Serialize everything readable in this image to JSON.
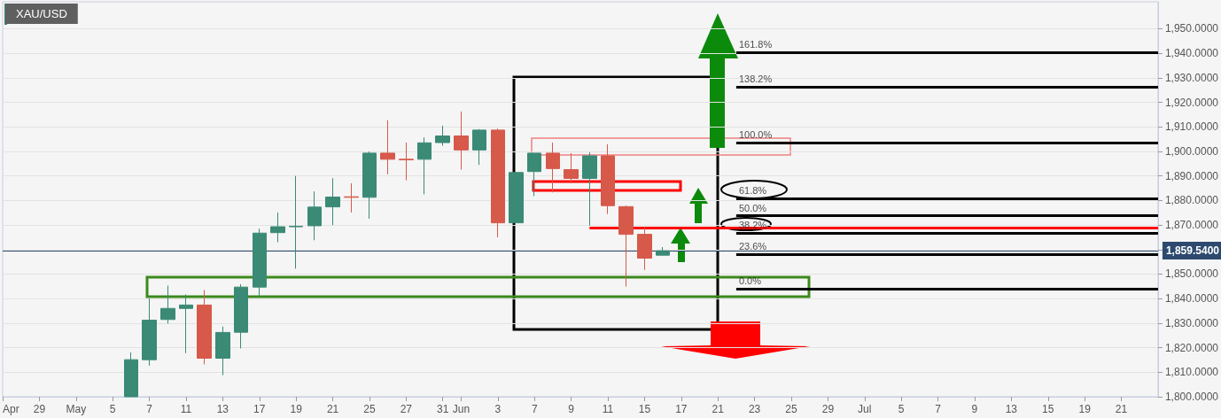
{
  "chart_data": {
    "type": "candlestick",
    "title": "XAU/USD",
    "categories": [
      "Apr",
      null,
      "29",
      null,
      "May",
      null,
      "5",
      null,
      "7",
      null,
      "11",
      null,
      "13",
      null,
      "17",
      null,
      "19",
      null,
      "21",
      null,
      "25",
      null,
      "27",
      null,
      "31",
      "Jun",
      null,
      "3",
      null,
      "7",
      null,
      "9",
      null,
      "11",
      null,
      "15",
      null,
      "17",
      null,
      "21",
      null,
      "23",
      null,
      "25",
      null,
      "29",
      null,
      "Jul",
      null,
      "5",
      null,
      "7",
      null,
      "9",
      null,
      "13",
      null,
      "15",
      null,
      "19",
      null,
      "21",
      null,
      null
    ],
    "ohlc": [
      null,
      null,
      null,
      null,
      null,
      null,
      null,
      [
        1800,
        1818.1,
        1800,
        1815.1
      ],
      [
        1815.1,
        1840,
        1812.7,
        1831.2
      ],
      [
        1831.5,
        1845.3,
        1829.8,
        1836.0
      ],
      [
        1836.0,
        1841.7,
        1817.8,
        1837.4
      ],
      [
        1837.4,
        1843.5,
        1813.2,
        1815.7
      ],
      [
        1815.7,
        1828.6,
        1808.8,
        1826.2
      ],
      [
        1826.3,
        1845.9,
        1819.7,
        1844.7
      ],
      [
        1844.7,
        1868.5,
        1840.7,
        1866.7
      ],
      [
        1866.9,
        1875.1,
        1863.0,
        1869.3
      ],
      [
        1869.3,
        1890.0,
        1852.2,
        1869.5
      ],
      [
        1869.7,
        1883.7,
        1863.8,
        1877.3
      ],
      [
        1877.4,
        1889.1,
        1870.0,
        1881.4
      ],
      [
        1881.5,
        1887.0,
        1875.1,
        1881.3
      ],
      [
        1881.3,
        1900.0,
        1872.6,
        1899.3
      ],
      [
        1899.3,
        1912.7,
        1890.7,
        1896.8
      ],
      [
        1896.8,
        1903.6,
        1888.2,
        1896.6
      ],
      [
        1896.8,
        1905.7,
        1882.5,
        1903.5
      ],
      [
        1903.6,
        1910.5,
        1902.3,
        1906.3
      ],
      [
        1906.3,
        1916.3,
        1892.6,
        1900.6
      ],
      [
        1900.6,
        1909.1,
        1894.5,
        1908.7
      ],
      [
        1908.7,
        1909.3,
        1865.0,
        1870.9
      ],
      [
        1870.9,
        1891.4,
        1870.9,
        1891.4
      ],
      [
        1891.8,
        1899.3,
        1881.8,
        1899.3
      ],
      [
        1899.3,
        1903.6,
        1883.3,
        1893.0
      ],
      [
        1892.6,
        1899.3,
        1887.0,
        1889.0
      ],
      [
        1889.0,
        1899.6,
        1869.7,
        1898.2
      ],
      [
        1898.2,
        1902.9,
        1874.5,
        1877.9
      ],
      [
        1877.5,
        1877.9,
        1844.9,
        1866.2
      ],
      [
        1866.2,
        1869.1,
        1851.7,
        1856.5
      ],
      [
        1857.7,
        1861.0,
        1857.7,
        1859.5
      ],
      null,
      null,
      null,
      null,
      null,
      null,
      null,
      null,
      null,
      null,
      null,
      null,
      null,
      null,
      null,
      null,
      null,
      null,
      null,
      null,
      null,
      null,
      null,
      null,
      null,
      null,
      null
    ],
    "colors": [
      null,
      null,
      null,
      null,
      null,
      null,
      null,
      "#3a8a76",
      "#3a8a76",
      "#3a8a76",
      "#3a8a76",
      "#d6594a",
      "#3a8a76",
      "#3a8a76",
      "#3a8a76",
      "#3a8a76",
      "#3a8a76",
      "#3a8a76",
      "#3a8a76",
      "#d6594a",
      "#3a8a76",
      "#d6594a",
      "#d6594a",
      "#3a8a76",
      "#3a8a76",
      "#d6594a",
      "#3a8a76",
      "#d6594a",
      "#3a8a76",
      "#3a8a76",
      "#d6594a",
      "#d6594a",
      "#3a8a76",
      "#d6594a",
      "#d6594a",
      "#d6594a",
      "#3a8a76",
      null,
      null,
      null,
      null,
      null,
      null,
      null,
      null,
      null,
      null,
      null,
      null,
      null,
      null,
      null,
      null,
      null,
      null,
      null,
      null,
      null,
      null,
      null,
      null,
      null,
      null,
      null
    ],
    "ylim": [
      1800,
      1961
    ],
    "yticks": [
      {
        "value": 1800,
        "label": "1,800.0000"
      },
      {
        "value": 1810,
        "label": "1,810.0000"
      },
      {
        "value": 1820,
        "label": "1,820.0000"
      },
      {
        "value": 1830,
        "label": "1,830.0000"
      },
      {
        "value": 1840,
        "label": "1,840.0000"
      },
      {
        "value": 1850,
        "label": "1,850.0000"
      },
      {
        "value": 1860,
        "label": null
      },
      {
        "value": 1870,
        "label": "1,870.0000"
      },
      {
        "value": 1880,
        "label": "1,880.0000"
      },
      {
        "value": 1890,
        "label": "1,890.0000"
      },
      {
        "value": 1900,
        "label": "1,900.0000"
      },
      {
        "value": 1910,
        "label": "1,910.0000"
      },
      {
        "value": 1920,
        "label": "1,920.0000"
      },
      {
        "value": 1930,
        "label": "1,930.0000"
      },
      {
        "value": 1940,
        "label": "1,940.0000"
      },
      {
        "value": 1950,
        "label": "1,950.0000"
      }
    ],
    "ref_lines": [
      {
        "axis": "y",
        "value": 1940.4,
        "color": "#000000"
      },
      {
        "axis": "y",
        "value": 1926.4,
        "color": "#000000"
      },
      {
        "axis": "y",
        "value": 1903.6,
        "color": "#000000"
      },
      {
        "axis": "y",
        "value": 1880.8,
        "color": "#000000"
      },
      {
        "axis": "y",
        "value": 1873.8,
        "color": "#000000"
      },
      {
        "axis": "y",
        "value": 1866.8,
        "color": "#000000"
      },
      {
        "axis": "y",
        "value": 1858.1,
        "color": "#000000"
      },
      {
        "axis": "y",
        "value": 1844.0,
        "color": "#000000"
      },
      {
        "axis": "y",
        "value": 1869.0,
        "color": "#ff0000"
      },
      {
        "axis": "y",
        "value": 1859.54,
        "label": "1,859.5400",
        "color": "#2d4a6e"
      }
    ],
    "annotations": [
      {
        "text": "161.8%",
        "y": 1940.4
      },
      {
        "text": "138.2%",
        "y": 1926.4
      },
      {
        "text": "100.0%",
        "y": 1903.6
      },
      {
        "text": "61.8%",
        "y": 1880.8
      },
      {
        "text": "50.0%",
        "y": 1873.8
      },
      {
        "text": "38.2%",
        "y": 1866.8
      },
      {
        "text": "23.6%",
        "y": 1858.1
      },
      {
        "text": "0.0%",
        "y": 1844.0
      }
    ],
    "grid": "y"
  }
}
